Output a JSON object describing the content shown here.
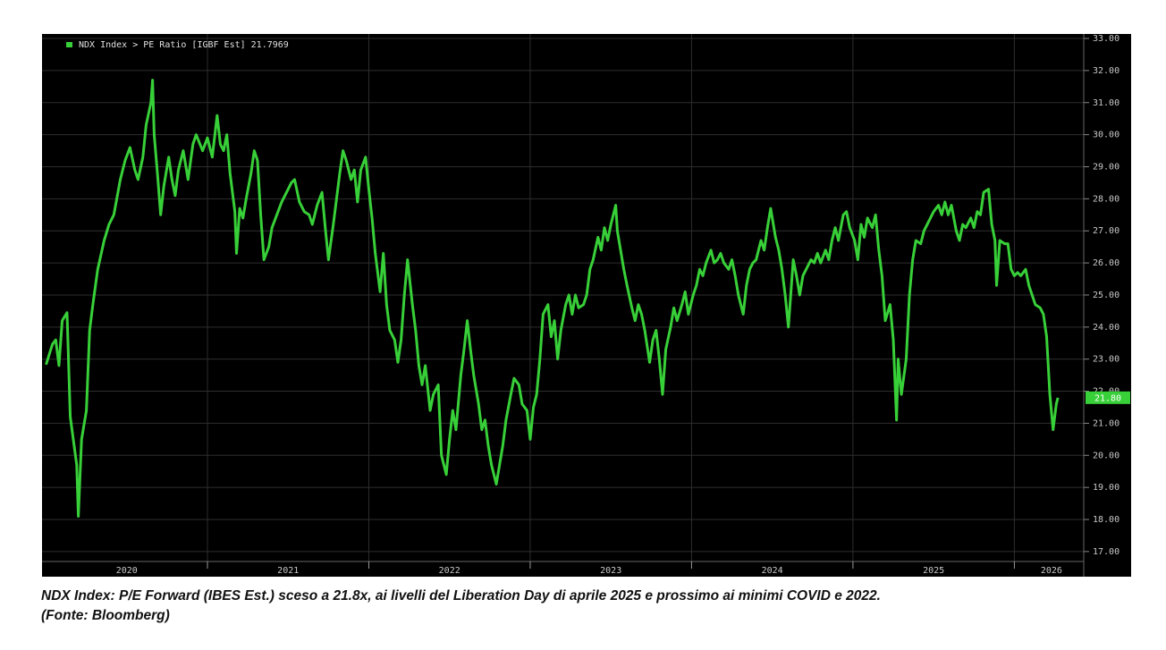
{
  "chart_data": {
    "type": "line",
    "series": [
      {
        "name": "NDX Index > PE Ratio [IGBF Est] 21.7969",
        "color": "#38d038",
        "values": [
          22.83,
          23.47,
          23.6,
          22.8,
          24.2,
          24.45,
          21.2,
          19.7,
          18.1,
          20.5,
          21.4,
          23.9,
          24.7,
          25.8,
          26.7,
          27.2,
          27.5,
          28.6,
          29.2,
          29.6,
          28.9,
          28.6,
          29.3,
          30.3,
          31.0,
          31.7,
          30.0,
          28.8,
          27.5,
          28.4,
          29.3,
          28.6,
          28.1,
          28.9,
          29.5,
          28.6,
          29.7,
          30.0,
          29.5,
          29.9,
          29.3,
          30.6,
          29.7,
          29.5,
          30.0,
          28.8,
          27.6,
          26.3,
          27.7,
          27.4,
          28.0,
          28.8,
          29.5,
          29.2,
          27.5,
          26.1,
          26.5,
          27.1,
          27.5,
          27.9,
          28.2,
          28.5,
          28.6,
          27.9,
          27.6,
          27.5,
          27.2,
          27.8,
          28.2,
          27.1,
          26.1,
          27.2,
          28.0,
          28.8,
          29.5,
          29.2,
          28.6,
          28.9,
          27.9,
          28.9,
          29.3,
          28.3,
          27.4,
          26.3,
          25.1,
          26.3,
          24.7,
          23.9,
          23.6,
          22.9,
          23.6,
          25.0,
          26.1,
          24.7,
          23.9,
          22.8,
          22.2,
          22.8,
          21.4,
          21.9,
          22.2,
          20.0,
          19.4,
          20.5,
          21.4,
          20.8,
          22.5,
          23.3,
          24.2,
          23.3,
          22.5,
          21.6,
          20.8,
          21.1,
          20.3,
          19.7,
          19.1,
          19.7,
          20.3,
          21.1,
          21.9,
          22.4,
          22.2,
          21.6,
          21.4,
          20.5,
          21.5,
          21.9,
          23.0,
          24.4,
          24.7,
          23.7,
          24.2,
          23.0,
          23.9,
          24.7,
          25.0,
          24.4,
          25.0,
          24.6,
          24.7,
          25.0,
          25.8,
          26.1,
          26.8,
          26.4,
          27.1,
          26.7,
          27.2,
          27.8,
          27.0,
          26.4,
          25.8,
          25.3,
          24.6,
          24.2,
          24.7,
          24.4,
          23.9,
          22.9,
          23.6,
          23.9,
          23.0,
          21.9,
          23.3,
          24.0,
          24.6,
          24.2,
          24.7,
          25.1,
          24.4,
          25.0,
          25.3,
          25.8,
          25.6,
          26.0,
          26.4,
          26.0,
          26.1,
          26.3,
          26.0,
          25.8,
          26.1,
          25.6,
          25.0,
          24.4,
          25.3,
          25.8,
          26.0,
          26.1,
          26.7,
          26.4,
          27.1,
          27.7,
          26.8,
          26.4,
          25.8,
          25.0,
          24.0,
          26.1,
          25.6,
          25.0,
          25.6,
          25.8,
          26.1,
          26.0,
          26.3,
          26.0,
          26.4,
          26.1,
          26.7,
          27.1,
          26.7,
          27.5,
          27.6,
          27.1,
          26.7,
          26.1,
          27.2,
          26.8,
          27.4,
          27.1,
          27.5,
          26.4,
          25.6,
          24.2,
          24.7,
          23.6,
          21.1,
          23.0,
          21.9,
          23.0,
          25.0,
          26.1,
          26.7,
          26.6,
          27.0,
          27.2,
          27.4,
          27.6,
          27.8,
          27.5,
          27.9,
          27.5,
          27.8,
          27.0,
          26.7,
          27.2,
          27.1,
          27.4,
          27.1,
          27.6,
          27.5,
          28.2,
          28.3,
          27.2,
          26.7,
          25.3,
          26.7,
          26.6,
          26.6,
          25.8,
          25.6,
          25.7,
          25.6,
          25.8,
          25.3,
          25.0,
          24.7,
          24.6,
          24.4,
          23.7,
          21.9,
          20.8,
          21.6,
          21.7969
        ]
      }
    ],
    "x": [
      2020.0,
      2020.04,
      2020.06,
      2020.08,
      2020.1,
      2020.13,
      2020.15,
      2020.19,
      2020.2,
      2020.22,
      2020.25,
      2020.27,
      2020.29,
      2020.32,
      2020.36,
      2020.39,
      2020.42,
      2020.46,
      2020.49,
      2020.52,
      2020.55,
      2020.57,
      2020.6,
      2020.62,
      2020.65,
      2020.66,
      2020.67,
      2020.69,
      2020.71,
      2020.73,
      2020.76,
      2020.78,
      2020.8,
      2020.82,
      2020.85,
      2020.88,
      2020.91,
      2020.93,
      2020.97,
      2021.0,
      2021.03,
      2021.06,
      2021.08,
      2021.1,
      2021.12,
      2021.14,
      2021.17,
      2021.18,
      2021.2,
      2021.22,
      2021.24,
      2021.27,
      2021.29,
      2021.31,
      2021.33,
      2021.35,
      2021.38,
      2021.4,
      2021.43,
      2021.46,
      2021.49,
      2021.52,
      2021.54,
      2021.57,
      2021.6,
      2021.63,
      2021.65,
      2021.68,
      2021.71,
      2021.73,
      2021.75,
      2021.78,
      2021.8,
      2021.82,
      2021.84,
      2021.86,
      2021.89,
      2021.91,
      2021.93,
      2021.95,
      2021.98,
      2022.0,
      2022.02,
      2022.04,
      2022.07,
      2022.09,
      2022.11,
      2022.13,
      2022.16,
      2022.18,
      2022.2,
      2022.22,
      2022.24,
      2022.27,
      2022.29,
      2022.31,
      2022.33,
      2022.35,
      2022.38,
      2022.4,
      2022.43,
      2022.45,
      2022.48,
      2022.5,
      2022.52,
      2022.54,
      2022.57,
      2022.59,
      2022.61,
      2022.63,
      2022.65,
      2022.68,
      2022.7,
      2022.72,
      2022.74,
      2022.76,
      2022.79,
      2022.81,
      2022.83,
      2022.85,
      2022.88,
      2022.9,
      2022.93,
      2022.95,
      2022.98,
      2023.0,
      2023.02,
      2023.04,
      2023.06,
      2023.08,
      2023.11,
      2023.13,
      2023.15,
      2023.17,
      2023.19,
      2023.22,
      2023.24,
      2023.26,
      2023.28,
      2023.3,
      2023.33,
      2023.35,
      2023.37,
      2023.39,
      2023.42,
      2023.44,
      2023.46,
      2023.48,
      2023.5,
      2023.53,
      2023.54,
      2023.56,
      2023.58,
      2023.6,
      2023.63,
      2023.65,
      2023.67,
      2023.69,
      2023.71,
      2023.74,
      2023.76,
      2023.78,
      2023.8,
      2023.82,
      2023.84,
      2023.87,
      2023.89,
      2023.91,
      2023.94,
      2023.96,
      2023.98,
      2024.01,
      2024.03,
      2024.05,
      2024.07,
      2024.09,
      2024.12,
      2024.14,
      2024.16,
      2024.18,
      2024.2,
      2024.23,
      2024.25,
      2024.27,
      2024.29,
      2024.32,
      2024.34,
      2024.36,
      2024.38,
      2024.4,
      2024.43,
      2024.45,
      2024.47,
      2024.49,
      2024.52,
      2024.54,
      2024.56,
      2024.58,
      2024.6,
      2024.63,
      2024.65,
      2024.67,
      2024.69,
      2024.71,
      2024.74,
      2024.76,
      2024.78,
      2024.8,
      2024.83,
      2024.85,
      2024.87,
      2024.89,
      2024.91,
      2024.94,
      2024.96,
      2024.98,
      2025.01,
      2025.03,
      2025.05,
      2025.07,
      2025.09,
      2025.12,
      2025.14,
      2025.16,
      2025.18,
      2025.2,
      2025.23,
      2025.25,
      2025.27,
      2025.28,
      2025.3,
      2025.33,
      2025.35,
      2025.37,
      2025.39,
      2025.42,
      2025.44,
      2025.46,
      2025.48,
      2025.5,
      2025.53,
      2025.55,
      2025.57,
      2025.59,
      2025.61,
      2025.64,
      2025.66,
      2025.68,
      2025.7,
      2025.73,
      2025.75,
      2025.77,
      2025.79,
      2025.81,
      2025.84,
      2025.86,
      2025.88,
      2025.89,
      2025.91,
      2025.94,
      2025.96,
      2025.98,
      2026.0,
      2026.02,
      2026.04,
      2026.07,
      2026.09,
      2026.11,
      2026.13,
      2026.16,
      2026.18,
      2026.2,
      2026.22,
      2026.24,
      2026.26,
      2026.27
    ],
    "xlim": [
      2019.975,
      2026.43
    ],
    "xticks": [
      {
        "value": 2020.5,
        "label": "2020"
      },
      {
        "value": 2021.5,
        "label": "2021"
      },
      {
        "value": 2022.5,
        "label": "2022"
      },
      {
        "value": 2023.5,
        "label": "2023"
      },
      {
        "value": 2024.5,
        "label": "2024"
      },
      {
        "value": 2025.5,
        "label": "2025"
      },
      {
        "value": 2026.23,
        "label": "2026"
      }
    ],
    "x_separators": [
      2021,
      2022,
      2023,
      2024,
      2025,
      2026
    ],
    "ylim": [
      16.69,
      33.14
    ],
    "yticks": [
      {
        "value": 17,
        "label": "17.00"
      },
      {
        "value": 18,
        "label": "18.00"
      },
      {
        "value": 19,
        "label": "19.00"
      },
      {
        "value": 20,
        "label": "20.00"
      },
      {
        "value": 21,
        "label": "21.00"
      },
      {
        "value": 22,
        "label": "22.00"
      },
      {
        "value": 23,
        "label": "23.00"
      },
      {
        "value": 24,
        "label": "24.00"
      },
      {
        "value": 25,
        "label": "25.00"
      },
      {
        "value": 26,
        "label": "26.00"
      },
      {
        "value": 27,
        "label": "27.00"
      },
      {
        "value": 28,
        "label": "28.00"
      },
      {
        "value": 29,
        "label": "29.00"
      },
      {
        "value": 30,
        "label": "30.00"
      },
      {
        "value": 31,
        "label": "31.00"
      },
      {
        "value": 32,
        "label": "32.00"
      },
      {
        "value": 33,
        "label": "33.00"
      }
    ],
    "end_label": "21.80",
    "grid": true,
    "legend": "top-left",
    "caption": [
      "NDX Index: P/E Forward (IBES Est.) sceso a 21.8x, ai livelli del Liberation Day di aprile 2025 e prossimo ai minimi COVID e 2022.",
      "(Fonte: Bloomberg)"
    ]
  }
}
